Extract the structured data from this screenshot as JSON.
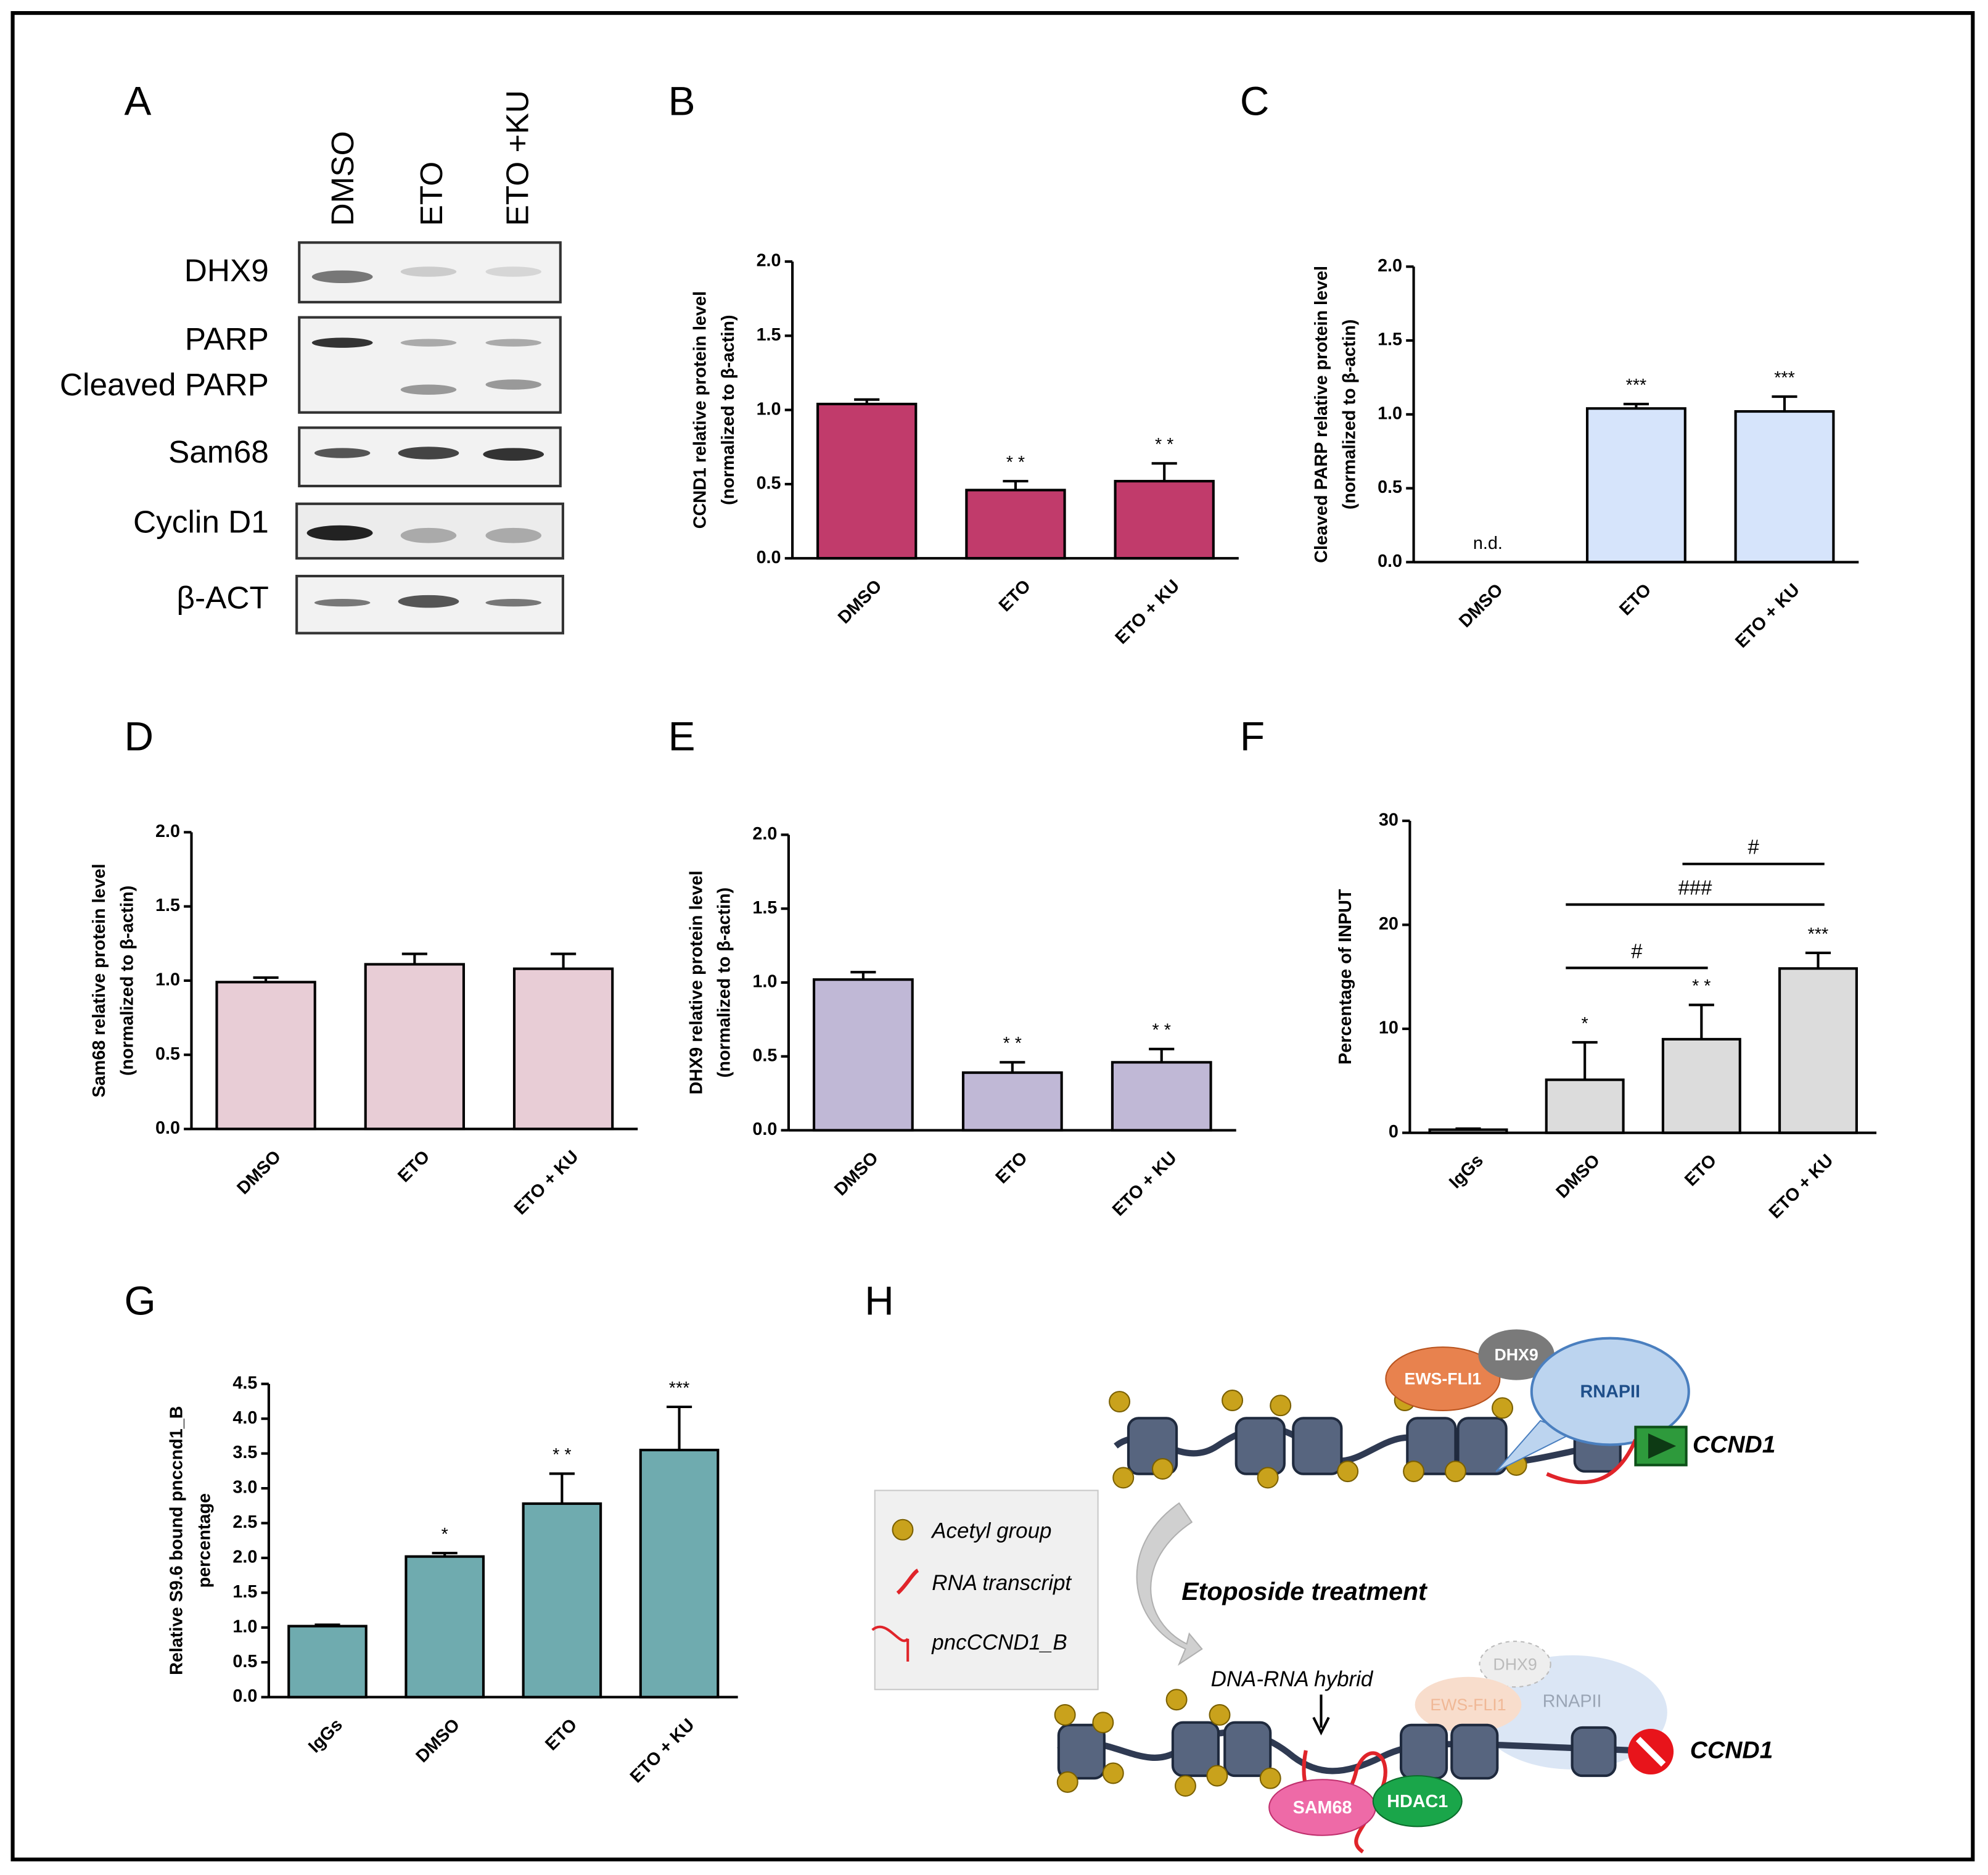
{
  "panel_labels": [
    "A",
    "B",
    "C",
    "D",
    "E",
    "F",
    "G",
    "H"
  ],
  "blot": {
    "lanes": [
      "DMSO",
      "ETO",
      "ETO +KU"
    ],
    "rows": [
      "DHX9",
      "PARP",
      "Cleaved PARP",
      "Sam68",
      "Cyclin D1",
      "β-ACT"
    ]
  },
  "chart_data": [
    {
      "type": "bar",
      "ylabel": [
        "CCND1 relative protein level",
        "(normalized to β-actin)"
      ],
      "categories": [
        "DMSO",
        "ETO",
        "ETO + KU"
      ],
      "values": [
        1.04,
        0.46,
        0.52
      ],
      "errors": [
        0.03,
        0.06,
        0.12
      ],
      "annotations": [
        null,
        "* *",
        "* *"
      ],
      "color": "#c13b6b",
      "ylim": [
        0,
        2
      ],
      "yticks": [
        {
          "value": 0,
          "label": "0.0"
        },
        {
          "value": 0.5,
          "label": "0.5"
        },
        {
          "value": 1,
          "label": "1.0"
        },
        {
          "value": 1.5,
          "label": "1.5"
        },
        {
          "value": 2,
          "label": "2.0"
        }
      ]
    },
    {
      "type": "bar",
      "ylabel": [
        "Cleaved PARP relative protein level",
        "(normalized to β-actin)"
      ],
      "categories": [
        "DMSO",
        "ETO",
        "ETO + KU"
      ],
      "values": [
        null,
        1.04,
        1.02
      ],
      "errors": [
        null,
        0.03,
        0.1
      ],
      "annotations": [
        "n.d.",
        "***",
        "***"
      ],
      "color": "#d6e4fb",
      "ylim": [
        0,
        2
      ],
      "yticks": [
        {
          "value": 0,
          "label": "0.0"
        },
        {
          "value": 0.5,
          "label": "0.5"
        },
        {
          "value": 1,
          "label": "1.0"
        },
        {
          "value": 1.5,
          "label": "1.5"
        },
        {
          "value": 2,
          "label": "2.0"
        }
      ]
    },
    {
      "type": "bar",
      "ylabel": [
        "Sam68 relative protein level",
        "(normalized to β-actin)"
      ],
      "categories": [
        "DMSO",
        "ETO",
        "ETO + KU"
      ],
      "values": [
        0.99,
        1.11,
        1.08
      ],
      "errors": [
        0.03,
        0.07,
        0.1
      ],
      "color": "#e8cdd6",
      "ylim": [
        0,
        2
      ],
      "yticks": [
        {
          "value": 0,
          "label": "0.0"
        },
        {
          "value": 0.5,
          "label": "0.5"
        },
        {
          "value": 1,
          "label": "1.0"
        },
        {
          "value": 1.5,
          "label": "1.5"
        },
        {
          "value": 2,
          "label": "2.0"
        }
      ]
    },
    {
      "type": "bar",
      "ylabel": [
        "DHX9 relative protein level",
        "(normalized to β-actin)"
      ],
      "categories": [
        "DMSO",
        "ETO",
        "ETO + KU"
      ],
      "values": [
        1.02,
        0.39,
        0.46
      ],
      "errors": [
        0.05,
        0.07,
        0.09
      ],
      "annotations": [
        null,
        "* *",
        "* *"
      ],
      "color": "#c0b8d6",
      "ylim": [
        0,
        2
      ],
      "yticks": [
        {
          "value": 0,
          "label": "0.0"
        },
        {
          "value": 0.5,
          "label": "0.5"
        },
        {
          "value": 1,
          "label": "1.0"
        },
        {
          "value": 1.5,
          "label": "1.5"
        },
        {
          "value": 2,
          "label": "2.0"
        }
      ]
    },
    {
      "type": "bar",
      "ylabel": [
        "Percentage of INPUT"
      ],
      "categories": [
        "IgGs",
        "DMSO",
        "ETO",
        "ETO + KU"
      ],
      "values": [
        0.3,
        5.1,
        9.0,
        15.8
      ],
      "errors": [
        0.1,
        3.6,
        3.3,
        1.5
      ],
      "annotations": [
        null,
        "*",
        "* *",
        "***"
      ],
      "comparisons": [
        {
          "from": "DMSO",
          "to": "ETO",
          "label": "#"
        },
        {
          "from": "DMSO",
          "to": "ETO + KU",
          "label": "###"
        },
        {
          "from": "ETO",
          "to": "ETO + KU",
          "label": "#"
        }
      ],
      "color": "#dcdcdc",
      "ylim": [
        0,
        30
      ],
      "yticks": [
        0,
        10,
        20,
        30
      ]
    },
    {
      "type": "bar",
      "ylabel": [
        "Relative S9.6 bound pnccnd1_B",
        "percentage"
      ],
      "categories": [
        "IgGs",
        "DMSO",
        "ETO",
        "ETO + KU"
      ],
      "values": [
        1.02,
        2.02,
        2.78,
        3.55
      ],
      "errors": [
        0.02,
        0.05,
        0.43,
        0.62
      ],
      "annotations": [
        null,
        "*",
        "* *",
        "***"
      ],
      "color": "#6fabaf",
      "ylim": [
        0,
        4.5
      ],
      "yticks": [
        {
          "value": 0,
          "label": "0.0"
        },
        {
          "value": 0.5,
          "label": "0.5"
        },
        {
          "value": 1,
          "label": "1.0"
        },
        {
          "value": 1.5,
          "label": "1.5"
        },
        {
          "value": 2,
          "label": "2.0"
        },
        {
          "value": 2.5,
          "label": "2.5"
        },
        {
          "value": 3,
          "label": "3.0"
        },
        {
          "value": 3.5,
          "label": "3.5"
        },
        {
          "value": 4,
          "label": "4.0"
        },
        {
          "value": 4.5,
          "label": "4.5"
        }
      ]
    }
  ],
  "diagram": {
    "top": {
      "dhx9": "DHX9",
      "ews_fli1": "EWS-FLI1",
      "rnapii": "RNAPII",
      "gene": "CCND1"
    },
    "legend": [
      "Acetyl group",
      "RNA transcript",
      "pncCCND1_B"
    ],
    "treatment": [
      "Etoposide",
      " treatment"
    ],
    "hybrid": "DNA-RNA hybrid",
    "bottom": {
      "dhx9": "DHX9",
      "ews_fli1": "EWS-FLI1",
      "rnapii": "RNAPII",
      "sam68": "SAM68",
      "hdac1": "HDAC1",
      "gene": "CCND1"
    }
  }
}
